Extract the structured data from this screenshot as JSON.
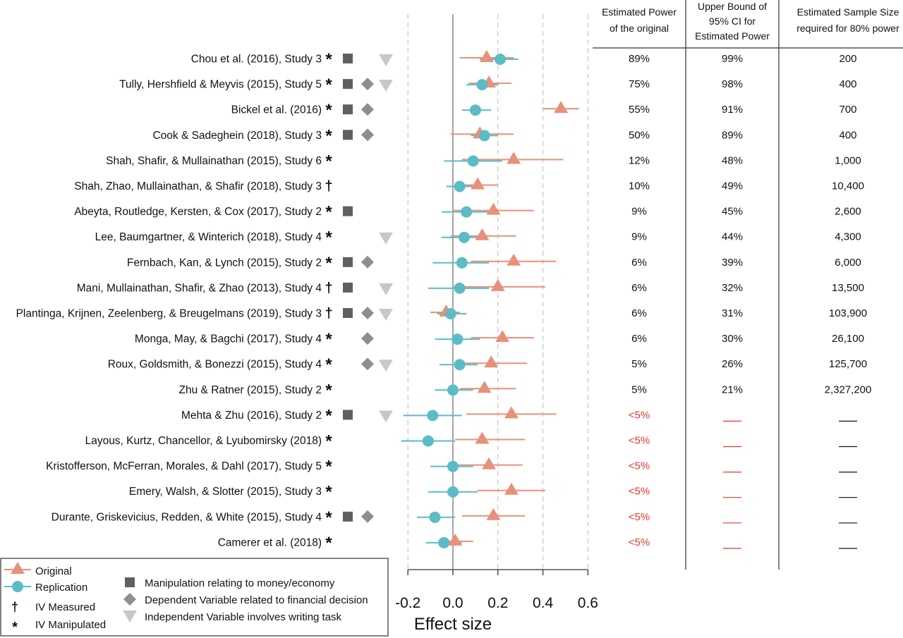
{
  "table": {
    "headers": [
      [
        "Estimated Power",
        "of the original"
      ],
      [
        "Upper Bound of",
        "95% CI for",
        "Estimated Power"
      ],
      [
        "Estimated Sample Size",
        "required for 80% power"
      ]
    ]
  },
  "legend": {
    "original": "Original",
    "replication": "Replication",
    "iv_measured": "IV Measured",
    "iv_manipulated": "IV Manipulated",
    "money": "Manipulation relating to money/economy",
    "dv": "Dependent Variable related to financial decision",
    "writing": "Independent Variable involves writing task",
    "dagger_symbol": "†",
    "star_symbol": "*"
  },
  "colors": {
    "original": "#e8917a",
    "replication": "#5bbcc6",
    "square": "#5f5f5f",
    "diamond": "#8e8e8e",
    "triangle_down": "#c8c8c8",
    "low_power": "#e5392b",
    "gridline": "#bbbbbb"
  },
  "chart_data": {
    "type": "forest",
    "xlabel": "Effect size",
    "xlim": [
      -0.2,
      0.6
    ],
    "xticks": [
      "-0.2",
      "0.0",
      "0.2",
      "0.4",
      "0.6"
    ],
    "xtick_values": [
      -0.2,
      0.0,
      0.2,
      0.4,
      0.6
    ],
    "grid": "vertical dashed",
    "legend_position": "bottom-left",
    "series": [
      {
        "name": "Original"
      },
      {
        "name": "Replication"
      }
    ],
    "studies": [
      {
        "label": "Chou et al. (2016), Study 3",
        "iv": "*",
        "money": true,
        "dv": false,
        "writing": true,
        "orig": {
          "est": 0.15,
          "lo": 0.03,
          "hi": 0.27
        },
        "rep": {
          "est": 0.21,
          "lo": 0.12,
          "hi": 0.29
        },
        "power": "89%",
        "upper": "99%",
        "n": "200"
      },
      {
        "label": "Tully, Hershfield & Meyvis (2015), Study 5",
        "iv": "*",
        "money": true,
        "dv": true,
        "writing": true,
        "orig": {
          "est": 0.16,
          "lo": 0.07,
          "hi": 0.26
        },
        "rep": {
          "est": 0.13,
          "lo": 0.06,
          "hi": 0.2
        },
        "power": "75%",
        "upper": "98%",
        "n": "400"
      },
      {
        "label": "Bickel et al. (2016)",
        "iv": "*",
        "money": true,
        "dv": true,
        "writing": false,
        "orig": {
          "est": 0.48,
          "lo": 0.4,
          "hi": 0.56
        },
        "rep": {
          "est": 0.1,
          "lo": 0.04,
          "hi": 0.17
        },
        "power": "55%",
        "upper": "91%",
        "n": "700"
      },
      {
        "label": "Cook & Sadeghein (2018), Study 3",
        "iv": "*",
        "money": true,
        "dv": true,
        "writing": false,
        "orig": {
          "est": 0.12,
          "lo": -0.01,
          "hi": 0.27
        },
        "rep": {
          "est": 0.14,
          "lo": 0.08,
          "hi": 0.2
        },
        "power": "50%",
        "upper": "89%",
        "n": "400"
      },
      {
        "label": "Shah, Shafir, & Mullainathan (2015), Study 6",
        "iv": "*",
        "money": false,
        "dv": false,
        "writing": false,
        "orig": {
          "est": 0.27,
          "lo": 0.04,
          "hi": 0.49
        },
        "rep": {
          "est": 0.09,
          "lo": -0.04,
          "hi": 0.22
        },
        "power": "12%",
        "upper": "48%",
        "n": "1,000"
      },
      {
        "label": "Shah, Zhao, Mullainathan, & Shafir (2018), Study 3",
        "iv": "†",
        "money": false,
        "dv": false,
        "writing": false,
        "orig": {
          "est": 0.11,
          "lo": 0.01,
          "hi": 0.2
        },
        "rep": {
          "est": 0.03,
          "lo": -0.03,
          "hi": 0.09
        },
        "power": "10%",
        "upper": "49%",
        "n": "10,400"
      },
      {
        "label": "Abeyta, Routledge, Kersten, & Cox (2017), Study 2",
        "iv": "*",
        "money": true,
        "dv": false,
        "writing": false,
        "orig": {
          "est": 0.18,
          "lo": 0.0,
          "hi": 0.36
        },
        "rep": {
          "est": 0.06,
          "lo": -0.05,
          "hi": 0.16
        },
        "power": "9%",
        "upper": "45%",
        "n": "2,600"
      },
      {
        "label": "Lee, Baumgartner, & Winterich (2018), Study 4",
        "iv": "*",
        "money": false,
        "dv": false,
        "writing": true,
        "orig": {
          "est": 0.13,
          "lo": -0.01,
          "hi": 0.28
        },
        "rep": {
          "est": 0.05,
          "lo": -0.05,
          "hi": 0.14
        },
        "power": "9%",
        "upper": "44%",
        "n": "4,300"
      },
      {
        "label": "Fernbach, Kan, & Lynch (2015), Study 2",
        "iv": "*",
        "money": true,
        "dv": true,
        "writing": false,
        "orig": {
          "est": 0.27,
          "lo": 0.08,
          "hi": 0.46
        },
        "rep": {
          "est": 0.04,
          "lo": -0.09,
          "hi": 0.16
        },
        "power": "6%",
        "upper": "39%",
        "n": "6,000"
      },
      {
        "label": "Mani, Mullainathan, Shafir, & Zhao (2013), Study 4",
        "iv": "†",
        "money": true,
        "dv": false,
        "writing": true,
        "orig": {
          "est": 0.2,
          "lo": 0.0,
          "hi": 0.41
        },
        "rep": {
          "est": 0.03,
          "lo": -0.11,
          "hi": 0.16
        },
        "power": "6%",
        "upper": "32%",
        "n": "13,500"
      },
      {
        "label": "Plantinga, Krijnen, Zeelenberg, & Breugelmans (2019), Study 3",
        "iv": "†",
        "money": true,
        "dv": true,
        "writing": true,
        "orig": {
          "est": -0.03,
          "lo": -0.1,
          "hi": 0.03
        },
        "rep": {
          "est": -0.01,
          "lo": -0.07,
          "hi": 0.06
        },
        "power": "6%",
        "upper": "31%",
        "n": "103,900"
      },
      {
        "label": "Monga, May, & Bagchi (2017), Study 4",
        "iv": "*",
        "money": false,
        "dv": true,
        "writing": false,
        "orig": {
          "est": 0.22,
          "lo": 0.08,
          "hi": 0.36
        },
        "rep": {
          "est": 0.02,
          "lo": -0.08,
          "hi": 0.12
        },
        "power": "6%",
        "upper": "30%",
        "n": "26,100"
      },
      {
        "label": "Roux, Goldsmith, & Bonezzi (2015), Study 4",
        "iv": "*",
        "money": false,
        "dv": true,
        "writing": true,
        "orig": {
          "est": 0.17,
          "lo": 0.05,
          "hi": 0.33
        },
        "rep": {
          "est": 0.03,
          "lo": -0.06,
          "hi": 0.11
        },
        "power": "5%",
        "upper": "26%",
        "n": "125,700"
      },
      {
        "label": "Zhu & Ratner (2015), Study 2",
        "iv": "*",
        "money": false,
        "dv": false,
        "writing": false,
        "orig": {
          "est": 0.14,
          "lo": 0.03,
          "hi": 0.28
        },
        "rep": {
          "est": 0.0,
          "lo": -0.08,
          "hi": 0.09
        },
        "power": "5%",
        "upper": "21%",
        "n": "2,327,200"
      },
      {
        "label": "Mehta & Zhu (2016), Study 2",
        "iv": "*",
        "money": true,
        "dv": false,
        "writing": true,
        "orig": {
          "est": 0.26,
          "lo": 0.06,
          "hi": 0.46
        },
        "rep": {
          "est": -0.09,
          "lo": -0.22,
          "hi": 0.04
        },
        "power": "<5%",
        "upper": "",
        "n": ""
      },
      {
        "label": "Layous, Kurtz, Chancellor, & Lyubomirsky (2018)",
        "iv": "*",
        "money": false,
        "dv": false,
        "writing": false,
        "orig": {
          "est": 0.13,
          "lo": 0.01,
          "hi": 0.32
        },
        "rep": {
          "est": -0.11,
          "lo": -0.23,
          "hi": 0.01
        },
        "power": "<5%",
        "upper": "",
        "n": ""
      },
      {
        "label": "Kristofferson, McFerran, Morales, & Dahl (2017), Study 5",
        "iv": "*",
        "money": false,
        "dv": false,
        "writing": false,
        "orig": {
          "est": 0.16,
          "lo": 0.02,
          "hi": 0.31
        },
        "rep": {
          "est": 0.0,
          "lo": -0.1,
          "hi": 0.09
        },
        "power": "<5%",
        "upper": "",
        "n": ""
      },
      {
        "label": "Emery, Walsh, & Slotter (2015), Study 3",
        "iv": "*",
        "money": false,
        "dv": false,
        "writing": false,
        "orig": {
          "est": 0.26,
          "lo": 0.11,
          "hi": 0.41
        },
        "rep": {
          "est": 0.0,
          "lo": -0.11,
          "hi": 0.11
        },
        "power": "<5%",
        "upper": "",
        "n": ""
      },
      {
        "label": "Durante, Griskevicius, Redden, & White (2015), Study 4",
        "iv": "*",
        "money": true,
        "dv": true,
        "writing": false,
        "orig": {
          "est": 0.18,
          "lo": 0.04,
          "hi": 0.32
        },
        "rep": {
          "est": -0.08,
          "lo": -0.16,
          "hi": 0.01
        },
        "power": "<5%",
        "upper": "",
        "n": ""
      },
      {
        "label": "Camerer et al. (2018)",
        "iv": "*",
        "money": false,
        "dv": false,
        "writing": false,
        "orig": {
          "est": 0.01,
          "lo": -0.03,
          "hi": 0.09
        },
        "rep": {
          "est": -0.04,
          "lo": -0.12,
          "hi": 0.04
        },
        "power": "<5%",
        "upper": "",
        "n": ""
      }
    ]
  }
}
